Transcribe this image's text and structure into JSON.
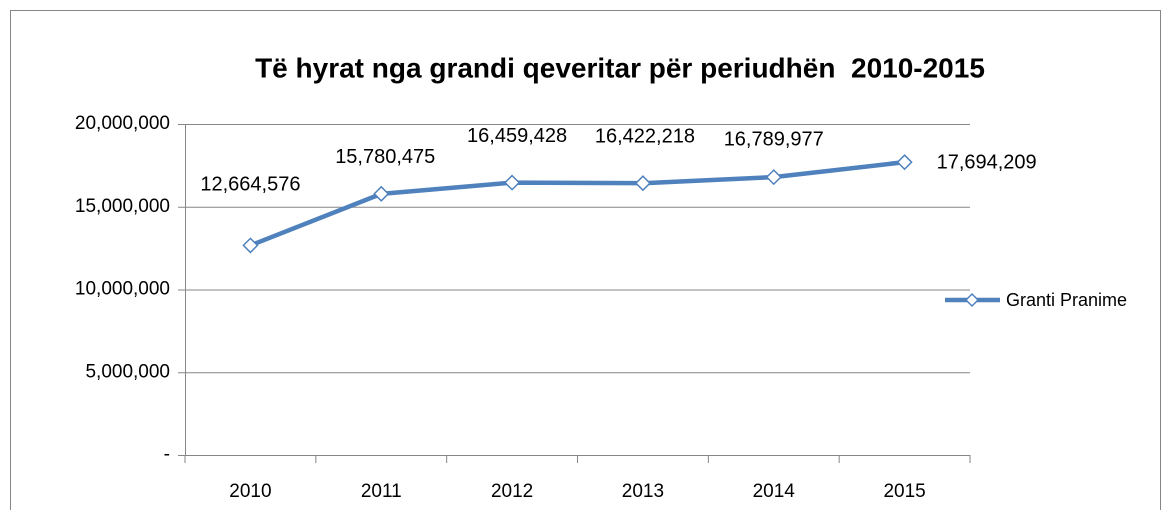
{
  "chart_data": {
    "type": "line",
    "title": "Të hyrat nga grandi qeveritar për periudhën  2010-2015",
    "categories": [
      "2010",
      "2011",
      "2012",
      "2013",
      "2014",
      "2015"
    ],
    "series": [
      {
        "name": "Granti Pranime",
        "color": "#4f81bd",
        "values": [
          12664576,
          15780475,
          16459428,
          16422218,
          16789977,
          17694209
        ],
        "value_labels": [
          "12,664,576",
          "15,780,475",
          "16,459,428",
          "16,422,218",
          "16,789,977",
          "17,694,209"
        ]
      }
    ],
    "ylim": [
      0,
      20000000
    ],
    "yticks": [
      {
        "value": 0,
        "label": "-"
      },
      {
        "value": 5000000,
        "label": "5,000,000"
      },
      {
        "value": 10000000,
        "label": "10,000,000"
      },
      {
        "value": 15000000,
        "label": "15,000,000"
      },
      {
        "value": 20000000,
        "label": "20,000,000"
      }
    ],
    "grid": true,
    "legend": "right"
  }
}
